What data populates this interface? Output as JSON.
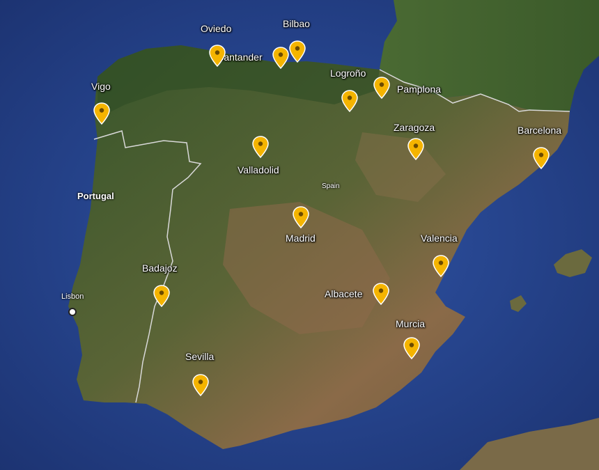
{
  "map": {
    "colors": {
      "sea": "#27468f",
      "sea_deep": "#1a2f6b",
      "land_green": "#3d5a2c",
      "land_dry": "#8a6a48",
      "border": "#d9d9d9",
      "marker": "#f4b400",
      "marker_dot": "#6b4a00"
    },
    "countries": {
      "portugal": "Portugal",
      "spain": "Spain"
    },
    "capitals": {
      "lisbon": "Lisbon"
    },
    "cities": [
      {
        "id": "oviedo",
        "name": "Oviedo"
      },
      {
        "id": "bilbao",
        "name": "Bilbao"
      },
      {
        "id": "santander",
        "name": "Santander"
      },
      {
        "id": "logrono",
        "name": "Logroño"
      },
      {
        "id": "pamplona",
        "name": "Pamplona"
      },
      {
        "id": "vigo",
        "name": "Vigo"
      },
      {
        "id": "zaragoza",
        "name": "Zaragoza"
      },
      {
        "id": "barcelona",
        "name": "Barcelona"
      },
      {
        "id": "valladolid",
        "name": "Valladolid"
      },
      {
        "id": "madrid",
        "name": "Madrid"
      },
      {
        "id": "valencia",
        "name": "Valencia"
      },
      {
        "id": "badajoz",
        "name": "Badajoz"
      },
      {
        "id": "albacete",
        "name": "Albacete"
      },
      {
        "id": "murcia",
        "name": "Murcia"
      },
      {
        "id": "sevilla",
        "name": "Sevilla"
      }
    ],
    "marker_icon": "map-pin-icon"
  }
}
